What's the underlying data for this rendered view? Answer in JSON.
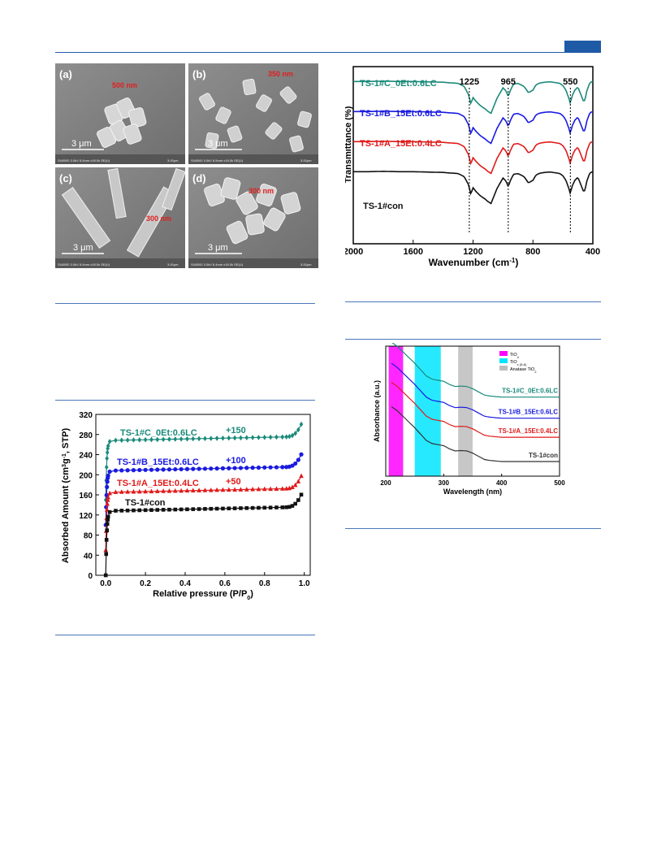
{
  "sem": {
    "panels": [
      {
        "letter": "(a)",
        "size_label": "500 nm",
        "scale": "3 μm",
        "meta": "SU8000 3.0kV 8.4mm x18.0k SE(U)",
        "scale_right": "3.00μm"
      },
      {
        "letter": "(b)",
        "size_label": "350 nm",
        "scale": "3 μm",
        "meta": "SU8000 3.0kV 8.5mm x18.0k SE(U)",
        "scale_right": "3.00μm"
      },
      {
        "letter": "(c)",
        "size_label": "300 nm",
        "scale": "3 μm",
        "meta": "SU8000 3.0kV 8.4mm x18.0k SE(U)",
        "scale_right": "3.00μm"
      },
      {
        "letter": "(d)",
        "size_label": "300 nm",
        "scale": "3 μm",
        "meta": "SU8000 3.0kV 8.4mm x18.0k SE(U)",
        "scale_right": "3.00μm"
      }
    ]
  },
  "colors": {
    "teal": "#1a8a7a",
    "blue": "#1a1ae0",
    "red": "#e01a1a",
    "black": "#111111",
    "rule": "#4a78b8"
  },
  "chart_data": [
    {
      "type": "line",
      "id": "ftir",
      "xlabel": "Wavenumber (cm",
      "xlabel_sup": "-1",
      "xlabel_end": ")",
      "ylabel": "Transmittance (%)",
      "xlim": [
        2000,
        400
      ],
      "xticks": [
        "2000",
        "1600",
        "1200",
        "800",
        "400"
      ],
      "peaks": [
        "1225",
        "965",
        "550"
      ],
      "peak_x": [
        1225,
        965,
        550
      ],
      "series": [
        {
          "name": "TS-1#C_0Et:0.6LC",
          "color": "#1a8a7a",
          "offset": 3
        },
        {
          "name": "TS-1#B_15Et:0.6LC",
          "color": "#1a1ae0",
          "offset": 2
        },
        {
          "name": "TS-1#A_15Et:0.4LC",
          "color": "#e01a1a",
          "offset": 1
        },
        {
          "name": "TS-1#con",
          "color": "#111111",
          "offset": 0
        }
      ],
      "profile_x": [
        2000,
        1900,
        1800,
        1700,
        1600,
        1500,
        1400,
        1300,
        1260,
        1230,
        1215,
        1200,
        1180,
        1150,
        1120,
        1100,
        1080,
        1060,
        1040,
        1000,
        980,
        965,
        950,
        930,
        900,
        860,
        830,
        800,
        780,
        760,
        740,
        720,
        700,
        680,
        650,
        620,
        600,
        580,
        560,
        550,
        540,
        520,
        500,
        480,
        460,
        450,
        440,
        420,
        400
      ],
      "profile_y": [
        0.95,
        0.95,
        0.96,
        0.95,
        0.95,
        0.94,
        0.93,
        0.9,
        0.82,
        0.6,
        0.35,
        0.52,
        0.42,
        0.3,
        0.22,
        0.15,
        0.1,
        0.3,
        0.5,
        0.78,
        0.7,
        0.55,
        0.72,
        0.88,
        0.9,
        0.82,
        0.65,
        0.72,
        0.86,
        0.9,
        0.92,
        0.93,
        0.94,
        0.94,
        0.92,
        0.9,
        0.84,
        0.72,
        0.5,
        0.35,
        0.55,
        0.72,
        0.8,
        0.6,
        0.4,
        0.5,
        0.7,
        0.92,
        0.95
      ]
    },
    {
      "type": "line",
      "id": "uvvis",
      "xlabel": "Wavelength (nm)",
      "ylabel": "Absorbance (a.u.)",
      "xlim": [
        200,
        500
      ],
      "xticks": [
        "200",
        "300",
        "400",
        "500"
      ],
      "bands": [
        {
          "range": [
            205,
            230
          ],
          "color": "#ff00ff",
          "label": "TiO",
          "sub": "4"
        },
        {
          "range": [
            250,
            295
          ],
          "color": "#00e5ff",
          "label": "TiO",
          "sub": "x (5-6)"
        },
        {
          "range": [
            325,
            350
          ],
          "color": "#bdbdbd",
          "label": "Anatase TiO",
          "sub": "2"
        }
      ],
      "series": [
        {
          "name": "TS-1#C_0Et:0.6LC",
          "color": "#1a8a7a",
          "baseline": 3.05
        },
        {
          "name": "TS-1#B_15Et:0.6LC",
          "color": "#1a1ae0",
          "baseline": 2.05
        },
        {
          "name": "TS-1#A_15Et:0.4LC",
          "color": "#e01a1a",
          "baseline": 1.15
        },
        {
          "name": "TS-1#con",
          "color": "#333333",
          "baseline": 0.0
        }
      ],
      "profile_x": [
        210,
        220,
        235,
        250,
        260,
        270,
        280,
        290,
        300,
        310,
        320,
        330,
        340,
        350,
        360,
        370,
        380,
        400,
        430,
        460,
        500
      ],
      "profile_y": [
        2.6,
        2.4,
        2.0,
        1.6,
        1.3,
        1.0,
        0.85,
        0.8,
        0.75,
        0.6,
        0.5,
        0.52,
        0.5,
        0.4,
        0.25,
        0.1,
        0.05,
        0.0,
        0.0,
        0.0,
        0.0
      ]
    },
    {
      "type": "line",
      "id": "n2-isotherm",
      "xlabel": "Relative pressure (P/P",
      "xlabel_sub": "0",
      "xlabel_end": ")",
      "ylabel": "Absorbed Amount (cm",
      "ylabel_sup": "3",
      "ylabel_mid": "g",
      "ylabel_sup2": "-1",
      "ylabel_end": ", STP)",
      "xlim": [
        -0.05,
        1.03
      ],
      "ylim": [
        0,
        320
      ],
      "xticks": [
        "0.0",
        "0.2",
        "0.4",
        "0.6",
        "0.8",
        "1.0"
      ],
      "yticks": [
        "0",
        "40",
        "80",
        "120",
        "160",
        "200",
        "240",
        "280",
        "320"
      ],
      "offsets_text": [
        "+150",
        "+100",
        "+50"
      ],
      "series": [
        {
          "name": "TS-1#C_0Et:0.6LC",
          "color": "#1a8a7a",
          "marker": "diamond",
          "offset": 150,
          "base": 118
        },
        {
          "name": "TS-1#B_15Et:0.6LC",
          "color": "#1a1ae0",
          "marker": "circle",
          "offset": 100,
          "base": 108
        },
        {
          "name": "TS-1#A_15Et:0.4LC",
          "color": "#e01a1a",
          "marker": "triangle",
          "offset": 50,
          "base": 115
        },
        {
          "name": "TS-1#con",
          "color": "#111111",
          "marker": "square",
          "offset": 0,
          "base": 128
        }
      ]
    }
  ]
}
